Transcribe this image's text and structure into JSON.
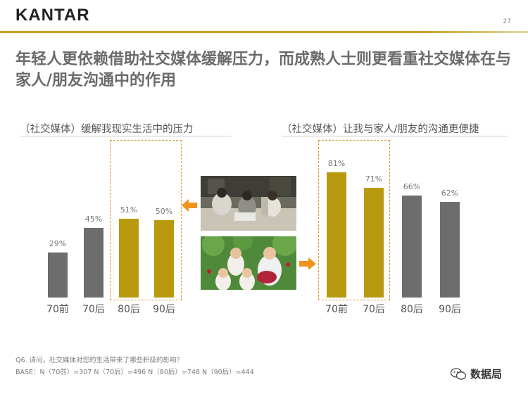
{
  "header": {
    "logo": "KANTAR",
    "page_number": "27"
  },
  "title": "年轻人更依赖借助社交媒体缓解压力，而成熟人士则更看重社交媒体在与家人/朋友沟通中的作用",
  "chart_data": [
    {
      "type": "bar",
      "title": "（社交媒体）缓解我现实生活中的压力",
      "categories": [
        "70前",
        "70后",
        "80后",
        "90后"
      ],
      "values": [
        29,
        45,
        51,
        50
      ],
      "value_labels": [
        "29%",
        "45%",
        "51%",
        "50%"
      ],
      "highlighted": [
        "80后",
        "90后"
      ],
      "colors": {
        "default": "#6e6d6e",
        "highlight": "#b99a0f"
      }
    },
    {
      "type": "bar",
      "title": "（社交媒体）让我与家人/朋友的沟通更便捷",
      "categories": [
        "70前",
        "70后",
        "80后",
        "90后"
      ],
      "values": [
        81,
        71,
        66,
        62
      ],
      "value_labels": [
        "81%",
        "71%",
        "66%",
        "62%"
      ],
      "highlighted": [
        "70前",
        "70后"
      ],
      "colors": {
        "default": "#6e6d6e",
        "highlight": "#b99a0f"
      }
    }
  ],
  "footnote": {
    "question": "Q6. 请问，社交媒体对您的生活带来了哪些积极的影响？",
    "base": "BASE：N（70前）=307    N（70后）=496   N（80后）=748   N（90后）=444"
  },
  "watermark": {
    "text": "数据局",
    "icon": "wechat-icon"
  },
  "colors": {
    "accent": "#c9a227",
    "arrow": "#f0921e"
  }
}
